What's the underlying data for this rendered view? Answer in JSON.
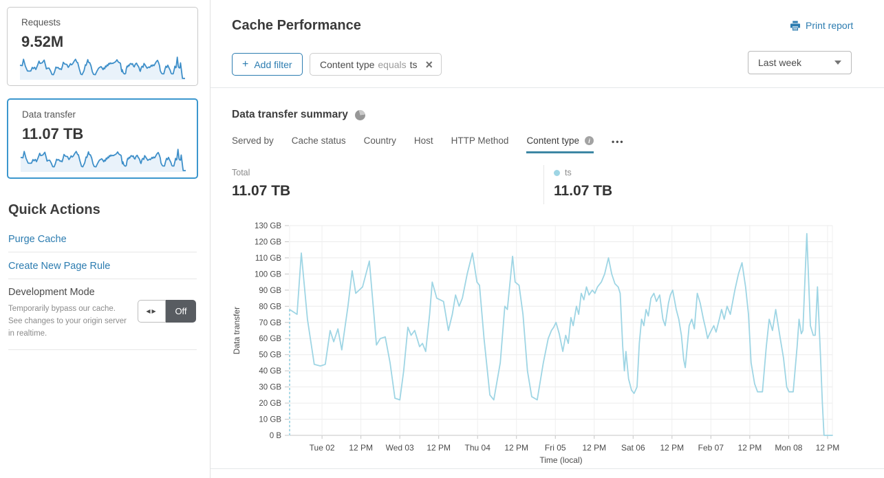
{
  "sidebar": {
    "cards": [
      {
        "label": "Requests",
        "value": "9.52M",
        "selected": false
      },
      {
        "label": "Data transfer",
        "value": "11.07 TB",
        "selected": true
      }
    ],
    "quick_actions": {
      "title": "Quick Actions",
      "links": [
        {
          "label": "Purge Cache"
        },
        {
          "label": "Create New Page Rule"
        }
      ],
      "dev_mode": {
        "title": "Development Mode",
        "description": "Temporarily bypass our cache. See changes to your origin server in realtime.",
        "state": "Off"
      }
    },
    "sparkline_stroke": "#3e8fc9",
    "sparkline_fill": "#e9f2fa"
  },
  "header": {
    "title": "Cache Performance",
    "print_label": "Print report",
    "add_filter_label": "Add filter",
    "filter_chip": {
      "field": "Content type",
      "operator": "equals",
      "value": "ts"
    },
    "time_range": "Last week"
  },
  "summary": {
    "title": "Data transfer summary",
    "tabs": [
      "Served by",
      "Cache status",
      "Country",
      "Host",
      "HTTP Method",
      "Content type"
    ],
    "active_tab": "Content type",
    "total_label": "Total",
    "total_value": "11.07 TB",
    "legend": {
      "name": "ts",
      "value": "11.07 TB",
      "color": "#9ed5e4"
    }
  },
  "icons": {
    "plus": "+",
    "close": "×",
    "ellipsis": "•••",
    "info": "i",
    "dev_toggle_arrows": "◀▶"
  },
  "chart_data": {
    "type": "line",
    "series_name": "ts",
    "ylabel": "Data transfer",
    "xlabel": "Time (local)",
    "ylim": [
      0,
      130
    ],
    "ytick_step": 10,
    "ytick_labels": [
      "0 B",
      "10 GB",
      "20 GB",
      "30 GB",
      "40 GB",
      "50 GB",
      "60 GB",
      "70 GB",
      "80 GB",
      "90 GB",
      "100 GB",
      "110 GB",
      "120 GB",
      "130 GB"
    ],
    "x_range_hours": [
      0,
      167.5
    ],
    "xticks": [
      {
        "h": 10,
        "label": "Tue 02"
      },
      {
        "h": 22,
        "label": "12 PM"
      },
      {
        "h": 34,
        "label": "Wed 03"
      },
      {
        "h": 46,
        "label": "12 PM"
      },
      {
        "h": 58,
        "label": "Thu 04"
      },
      {
        "h": 70,
        "label": "12 PM"
      },
      {
        "h": 82,
        "label": "Fri 05"
      },
      {
        "h": 94,
        "label": "12 PM"
      },
      {
        "h": 106,
        "label": "Sat 06"
      },
      {
        "h": 118,
        "label": "12 PM"
      },
      {
        "h": 130,
        "label": "Feb 07"
      },
      {
        "h": 142,
        "label": "12 PM"
      },
      {
        "h": 154,
        "label": "Mon 08"
      },
      {
        "h": 166,
        "label": "12 PM"
      }
    ],
    "line_color": "#9ed5e4",
    "grid": true,
    "leading_dash": true,
    "points": [
      [
        0,
        78
      ],
      [
        2.3,
        75
      ],
      [
        3.6,
        113
      ],
      [
        5.5,
        72
      ],
      [
        7.6,
        44
      ],
      [
        9.5,
        43
      ],
      [
        11,
        44
      ],
      [
        12.5,
        65
      ],
      [
        13.6,
        58
      ],
      [
        14.9,
        66
      ],
      [
        16.1,
        53
      ],
      [
        18,
        80
      ],
      [
        19.3,
        102
      ],
      [
        20.4,
        88
      ],
      [
        22.5,
        92
      ],
      [
        24.6,
        108
      ],
      [
        26,
        75
      ],
      [
        26.8,
        56
      ],
      [
        28,
        60
      ],
      [
        29.5,
        61
      ],
      [
        31,
        45
      ],
      [
        32.5,
        23
      ],
      [
        34,
        22
      ],
      [
        35.2,
        40
      ],
      [
        36.5,
        67
      ],
      [
        37.5,
        62
      ],
      [
        38.6,
        65
      ],
      [
        40.1,
        55
      ],
      [
        41,
        57
      ],
      [
        42,
        52
      ],
      [
        43.2,
        75
      ],
      [
        44,
        95
      ],
      [
        45.4,
        85
      ],
      [
        47.5,
        83
      ],
      [
        49,
        65
      ],
      [
        50.2,
        75
      ],
      [
        51.2,
        87
      ],
      [
        52.3,
        80
      ],
      [
        53.3,
        85
      ],
      [
        54.8,
        100
      ],
      [
        56.4,
        113
      ],
      [
        57.8,
        95
      ],
      [
        58.6,
        93
      ],
      [
        60,
        60
      ],
      [
        61.8,
        25
      ],
      [
        63,
        22
      ],
      [
        65,
        45
      ],
      [
        66.4,
        80
      ],
      [
        67.2,
        78
      ],
      [
        68.8,
        111
      ],
      [
        69.6,
        95
      ],
      [
        70.8,
        93
      ],
      [
        72,
        75
      ],
      [
        73.4,
        40
      ],
      [
        74.7,
        24
      ],
      [
        76.4,
        22
      ],
      [
        78.3,
        45
      ],
      [
        79.8,
        60
      ],
      [
        80.8,
        65
      ],
      [
        81.5,
        67
      ],
      [
        82.2,
        70
      ],
      [
        83.2,
        63
      ],
      [
        84.3,
        52
      ],
      [
        85.2,
        62
      ],
      [
        86,
        57
      ],
      [
        86.8,
        73
      ],
      [
        87.5,
        68
      ],
      [
        88.5,
        80
      ],
      [
        89.2,
        75
      ],
      [
        90,
        88
      ],
      [
        90.8,
        84
      ],
      [
        91.6,
        92
      ],
      [
        92.4,
        87
      ],
      [
        93.4,
        90
      ],
      [
        94.2,
        88
      ],
      [
        95,
        92
      ],
      [
        96.2,
        95
      ],
      [
        97.2,
        100
      ],
      [
        98.4,
        110
      ],
      [
        99.4,
        100
      ],
      [
        100.4,
        94
      ],
      [
        101.4,
        92
      ],
      [
        102,
        88
      ],
      [
        102.8,
        55
      ],
      [
        103.3,
        40
      ],
      [
        103.8,
        52
      ],
      [
        104.6,
        35
      ],
      [
        105.5,
        28
      ],
      [
        106.3,
        26
      ],
      [
        107.2,
        30
      ],
      [
        107.9,
        57
      ],
      [
        108.6,
        72
      ],
      [
        109.3,
        68
      ],
      [
        110,
        78
      ],
      [
        110.7,
        74
      ],
      [
        111.5,
        85
      ],
      [
        112.4,
        88
      ],
      [
        113.2,
        83
      ],
      [
        114.2,
        87
      ],
      [
        115.2,
        72
      ],
      [
        115.9,
        68
      ],
      [
        116.9,
        82
      ],
      [
        117.5,
        87
      ],
      [
        118.2,
        90
      ],
      [
        119.3,
        78
      ],
      [
        120.1,
        72
      ],
      [
        120.9,
        62
      ],
      [
        121.6,
        47
      ],
      [
        122.1,
        42
      ],
      [
        123.3,
        68
      ],
      [
        124.1,
        72
      ],
      [
        124.9,
        66
      ],
      [
        125.8,
        88
      ],
      [
        126.7,
        82
      ],
      [
        127.7,
        72
      ],
      [
        128.4,
        66
      ],
      [
        129,
        60
      ],
      [
        129.6,
        63
      ],
      [
        130.9,
        68
      ],
      [
        131.6,
        64
      ],
      [
        132.6,
        72
      ],
      [
        133.3,
        78
      ],
      [
        134.1,
        72
      ],
      [
        135,
        80
      ],
      [
        136,
        75
      ],
      [
        137.4,
        90
      ],
      [
        138.5,
        100
      ],
      [
        139.6,
        107
      ],
      [
        140.7,
        92
      ],
      [
        141.6,
        75
      ],
      [
        142.4,
        45
      ],
      [
        143.5,
        32
      ],
      [
        144.4,
        27
      ],
      [
        145.9,
        27
      ],
      [
        147.1,
        55
      ],
      [
        148,
        72
      ],
      [
        149,
        65
      ],
      [
        150,
        78
      ],
      [
        151.4,
        60
      ],
      [
        152.4,
        48
      ],
      [
        153.4,
        30
      ],
      [
        154.1,
        27
      ],
      [
        155.4,
        27
      ],
      [
        156.6,
        55
      ],
      [
        157.2,
        72
      ],
      [
        157.9,
        63
      ],
      [
        158.4,
        65
      ],
      [
        159.6,
        125
      ],
      [
        160.7,
        68
      ],
      [
        161.6,
        62
      ],
      [
        162.2,
        62
      ],
      [
        162.9,
        92
      ],
      [
        163.8,
        50
      ],
      [
        164.4,
        20
      ],
      [
        164.9,
        0
      ],
      [
        166.2,
        0
      ],
      [
        167.5,
        0
      ]
    ]
  }
}
